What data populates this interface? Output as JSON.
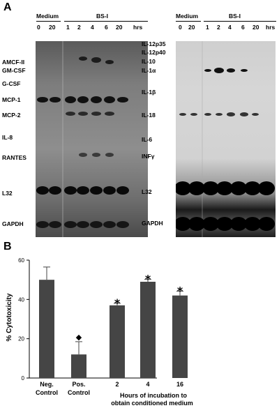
{
  "panel_a": {
    "letter": "A",
    "left_blot": {
      "group_medium": "Medium",
      "group_bsi": "BS-I",
      "lanes": [
        "0",
        "20",
        "1",
        "2",
        "4",
        "6",
        "20"
      ],
      "unit": "hrs",
      "genes": [
        "AMCF-II",
        "GM-CSF",
        "G-CSF",
        "MCP-1",
        "MCP-2",
        "IL-8",
        "RANTES",
        "L32",
        "GAPDH"
      ]
    },
    "right_blot": {
      "group_medium": "Medium",
      "group_bsi": "BS-I",
      "lanes": [
        "0",
        "20",
        "1",
        "2",
        "4",
        "6",
        "20"
      ],
      "unit": "hrs",
      "genes": [
        "IL-12p35",
        "IL-12p40",
        "IL-10",
        "IL-1α",
        "IL-1β",
        "IL-18",
        "IL-6",
        "INFγ",
        "L32",
        "GAPDH"
      ]
    }
  },
  "panel_b": {
    "letter": "B",
    "chart_data": {
      "type": "bar",
      "ylabel": "% Cytotoxicity",
      "ylim": [
        0,
        60
      ],
      "yticks": [
        "0",
        "20",
        "40",
        "60"
      ],
      "categories": [
        "Neg. Control",
        "Pos. Control",
        "2",
        "4",
        "16"
      ],
      "category_lines": [
        [
          "Neg.",
          "Control"
        ],
        [
          "Pos.",
          "Control"
        ],
        [
          "2"
        ],
        [
          "4"
        ],
        [
          "16"
        ]
      ],
      "values": [
        50,
        12,
        37,
        49,
        42
      ],
      "errors": [
        6.5,
        6.5,
        1,
        1.2,
        2.2
      ],
      "markers": [
        "",
        "◆",
        "*",
        "*",
        "*"
      ],
      "xlabel_lines": [
        "Hours of incubation to",
        "obtain conditioned medium"
      ],
      "bar_color": "#454545"
    }
  }
}
